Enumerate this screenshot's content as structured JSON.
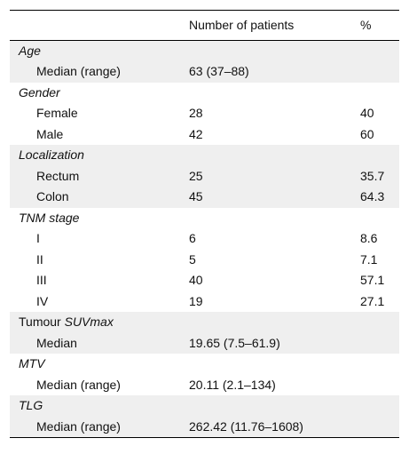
{
  "table": {
    "headers": {
      "label": "",
      "patients": "Number of patients",
      "percent": "%"
    },
    "rows": [
      {
        "type": "section",
        "label": "Age",
        "italic": true
      },
      {
        "type": "item",
        "label": "Median (range)",
        "n": "63 (37–88)",
        "pct": ""
      },
      {
        "type": "section",
        "label": "Gender",
        "italic": true
      },
      {
        "type": "item",
        "label": "Female",
        "n": "28",
        "pct": "40"
      },
      {
        "type": "item",
        "label": "Male",
        "n": "42",
        "pct": "60"
      },
      {
        "type": "section",
        "label": "Localization",
        "italic": true
      },
      {
        "type": "item",
        "label": "Rectum",
        "n": "25",
        "pct": "35.7"
      },
      {
        "type": "item",
        "label": "Colon",
        "n": "45",
        "pct": "64.3"
      },
      {
        "type": "section",
        "label": "TNM stage",
        "italic": true
      },
      {
        "type": "item",
        "label": "I",
        "n": "6",
        "pct": "8.6"
      },
      {
        "type": "item",
        "label": "II",
        "n": "5",
        "pct": "7.1"
      },
      {
        "type": "item",
        "label": "III",
        "n": "40",
        "pct": "57.1"
      },
      {
        "type": "item",
        "label": "IV",
        "n": "19",
        "pct": "27.1"
      },
      {
        "type": "section",
        "label_prefix": "Tumour ",
        "label_italic": "SUVmax"
      },
      {
        "type": "item",
        "label": "Median",
        "n": "19.65 (7.5–61.9)",
        "pct": ""
      },
      {
        "type": "section",
        "label": "MTV",
        "italic": true
      },
      {
        "type": "item",
        "label": "Median (range)",
        "n": "20.11 (2.1–134)",
        "pct": ""
      },
      {
        "type": "section",
        "label": "TLG",
        "italic": true
      },
      {
        "type": "item",
        "label": "Median (range)",
        "n": "262.42 (11.76–1608)",
        "pct": ""
      }
    ]
  }
}
